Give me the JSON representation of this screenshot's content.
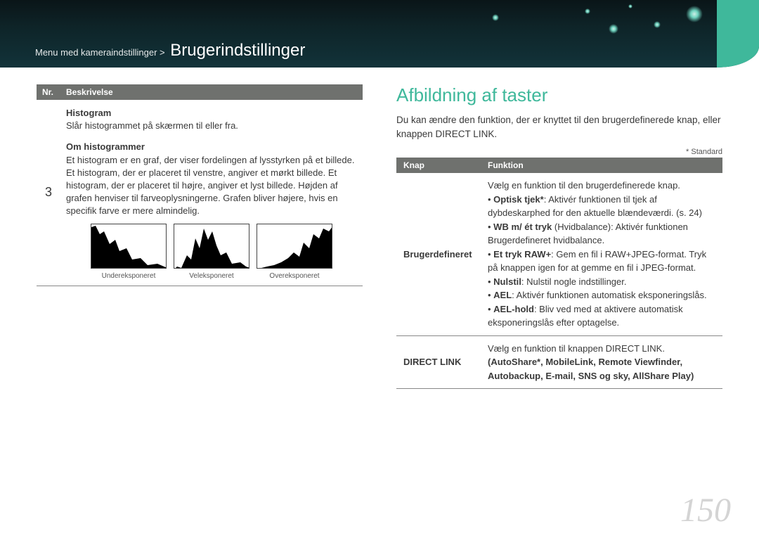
{
  "header": {
    "breadcrumb_prefix": "Menu med kameraindstillinger > ",
    "title": "Brugerindstillinger"
  },
  "left": {
    "table_headers": {
      "nr": "Nr.",
      "desc": "Beskrivelse"
    },
    "row_number": "3",
    "histogram_title": "Histogram",
    "histogram_line": "Slår histogrammet på skærmen til eller fra.",
    "about_title": "Om histogrammer",
    "about_body": "Et histogram er en graf, der viser fordelingen af lysstyrken på et billede. Et histogram, der er placeret til venstre, angiver et mørkt billede. Et histogram, der er placeret til højre, angiver et lyst billede. Højden af grafen henviser til farveoplysningerne. Grafen bliver højere, hvis en specifik farve er mere almindelig.",
    "hist_labels": [
      "Undereksponeret",
      "Veleksponeret",
      "Overeksponeret"
    ],
    "hist_paths": [
      "M0,64 L0,4 L6,2 L12,14 L18,10 L26,28 L34,22 L40,38 L50,34 L58,50 L70,48 L80,58 L94,56 L108,62 L108,64 Z",
      "M0,64 L4,60 L10,62 L18,44 L24,50 L30,20 L36,34 L42,6 L48,22 L54,10 L60,30 L66,44 L74,40 L82,56 L94,54 L102,60 L108,62 L108,64 Z",
      "M0,64 L6,62 L14,60 L24,58 L34,54 L44,48 L52,40 L60,46 L66,26 L74,34 L80,14 L88,20 L94,6 L102,10 L108,2 L108,64 Z"
    ]
  },
  "right": {
    "section_title": "Afbildning af taster",
    "intro": "Du kan ændre den funktion, der er knyttet til den brugerdefinerede knap, eller knappen DIRECT LINK.",
    "standard_note": "* Standard",
    "table_headers": {
      "knap": "Knap",
      "funktion": "Funktion"
    },
    "rows": [
      {
        "knap": "Brugerdefineret",
        "lead": "Vælg en funktion til den brugerdefinerede knap.",
        "items": [
          {
            "b": "Optisk tjek*",
            "t": ": Aktivér funktionen til tjek af dybdeskarphed for den aktuelle blændeværdi. (s. 24)"
          },
          {
            "b": "WB m/ ét tryk",
            "t": " (Hvidbalance): Aktivér funktionen Brugerdefineret hvidbalance."
          },
          {
            "b": "Et tryk RAW+",
            "t": ": Gem en fil i RAW+JPEG-format. Tryk på knappen igen for at gemme en fil i JPEG-format."
          },
          {
            "b": "Nulstil",
            "t": ": Nulstil nogle indstillinger."
          },
          {
            "b": "AEL",
            "t": ": Aktivér funktionen automatisk eksponeringslås."
          },
          {
            "b": "AEL-hold",
            "t": ": Bliv ved med at aktivere automatisk eksponeringslås efter optagelse."
          }
        ]
      },
      {
        "knap": "DIRECT LINK",
        "lead": "Vælg en funktion til knappen DIRECT LINK.",
        "bold_line1": "(AutoShare*, MobileLink, Remote Viewfinder,",
        "bold_line2": "Autobackup, E-mail, SNS og sky, AllShare Play)"
      }
    ]
  },
  "page_number": "150"
}
